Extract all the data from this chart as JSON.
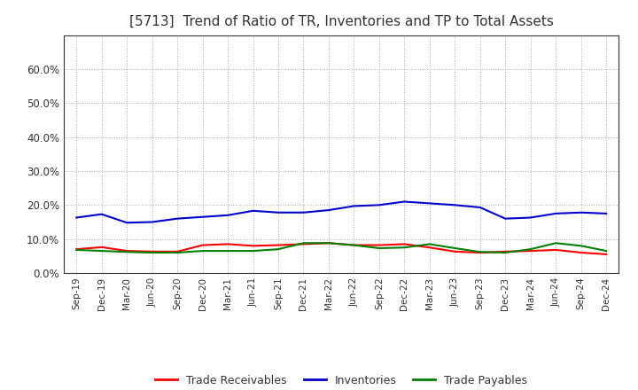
{
  "title": "[5713]  Trend of Ratio of TR, Inventories and TP to Total Assets",
  "x_labels": [
    "Sep-19",
    "Dec-19",
    "Mar-20",
    "Jun-20",
    "Sep-20",
    "Dec-20",
    "Mar-21",
    "Jun-21",
    "Sep-21",
    "Dec-21",
    "Mar-22",
    "Jun-22",
    "Sep-22",
    "Dec-22",
    "Mar-23",
    "Jun-23",
    "Sep-23",
    "Dec-23",
    "Mar-24",
    "Jun-24",
    "Sep-24",
    "Dec-24"
  ],
  "trade_receivables": [
    0.07,
    0.076,
    0.065,
    0.063,
    0.063,
    0.082,
    0.085,
    0.08,
    0.082,
    0.085,
    0.088,
    0.082,
    0.082,
    0.085,
    0.075,
    0.063,
    0.06,
    0.063,
    0.065,
    0.068,
    0.06,
    0.055
  ],
  "inventories": [
    0.163,
    0.173,
    0.148,
    0.15,
    0.16,
    0.165,
    0.17,
    0.183,
    0.178,
    0.178,
    0.185,
    0.197,
    0.2,
    0.21,
    0.205,
    0.2,
    0.193,
    0.16,
    0.163,
    0.175,
    0.178,
    0.175
  ],
  "trade_payables": [
    0.068,
    0.065,
    0.062,
    0.06,
    0.06,
    0.065,
    0.065,
    0.065,
    0.07,
    0.088,
    0.088,
    0.082,
    0.073,
    0.075,
    0.085,
    0.073,
    0.062,
    0.06,
    0.07,
    0.088,
    0.08,
    0.065
  ],
  "tr_color": "#ff0000",
  "inv_color": "#0000cc",
  "tp_color": "#008000",
  "ylim": [
    0.0,
    0.7
  ],
  "yticks": [
    0.0,
    0.1,
    0.2,
    0.3,
    0.4,
    0.5,
    0.6
  ],
  "background_color": "#ffffff",
  "grid_color": "#aaaaaa",
  "title_color": "#333333",
  "legend_labels": [
    "Trade Receivables",
    "Inventories",
    "Trade Payables"
  ],
  "figsize": [
    7.2,
    4.4
  ],
  "dpi": 100
}
